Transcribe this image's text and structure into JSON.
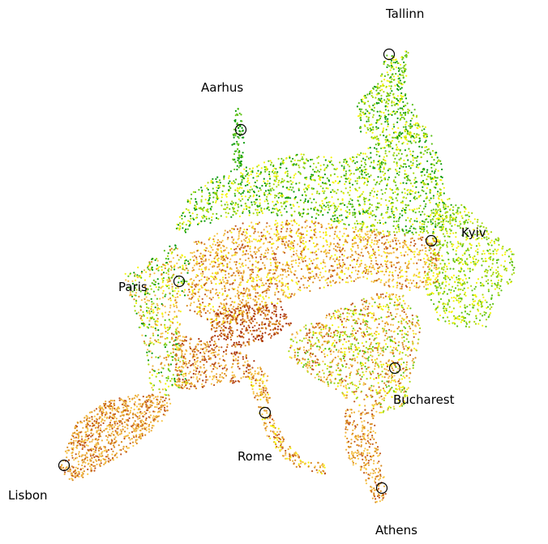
{
  "map": {
    "palette": [
      "#0a9a0a",
      "#5cc214",
      "#a6d80c",
      "#f5f50a",
      "#f7c64a",
      "#eeb03c",
      "#d98a1e",
      "#c0551a",
      "#a8320f"
    ],
    "cities": [
      {
        "id": "tallinn",
        "name": "Tallinn"
      },
      {
        "id": "aarhus",
        "name": "Aarhus"
      },
      {
        "id": "kyiv",
        "name": "Kyiv"
      },
      {
        "id": "paris",
        "name": "Paris"
      },
      {
        "id": "bucharest",
        "name": "Bucharest"
      },
      {
        "id": "rome",
        "name": "Rome"
      },
      {
        "id": "lisbon",
        "name": "Lisbon"
      },
      {
        "id": "athens",
        "name": "Athens"
      }
    ]
  }
}
